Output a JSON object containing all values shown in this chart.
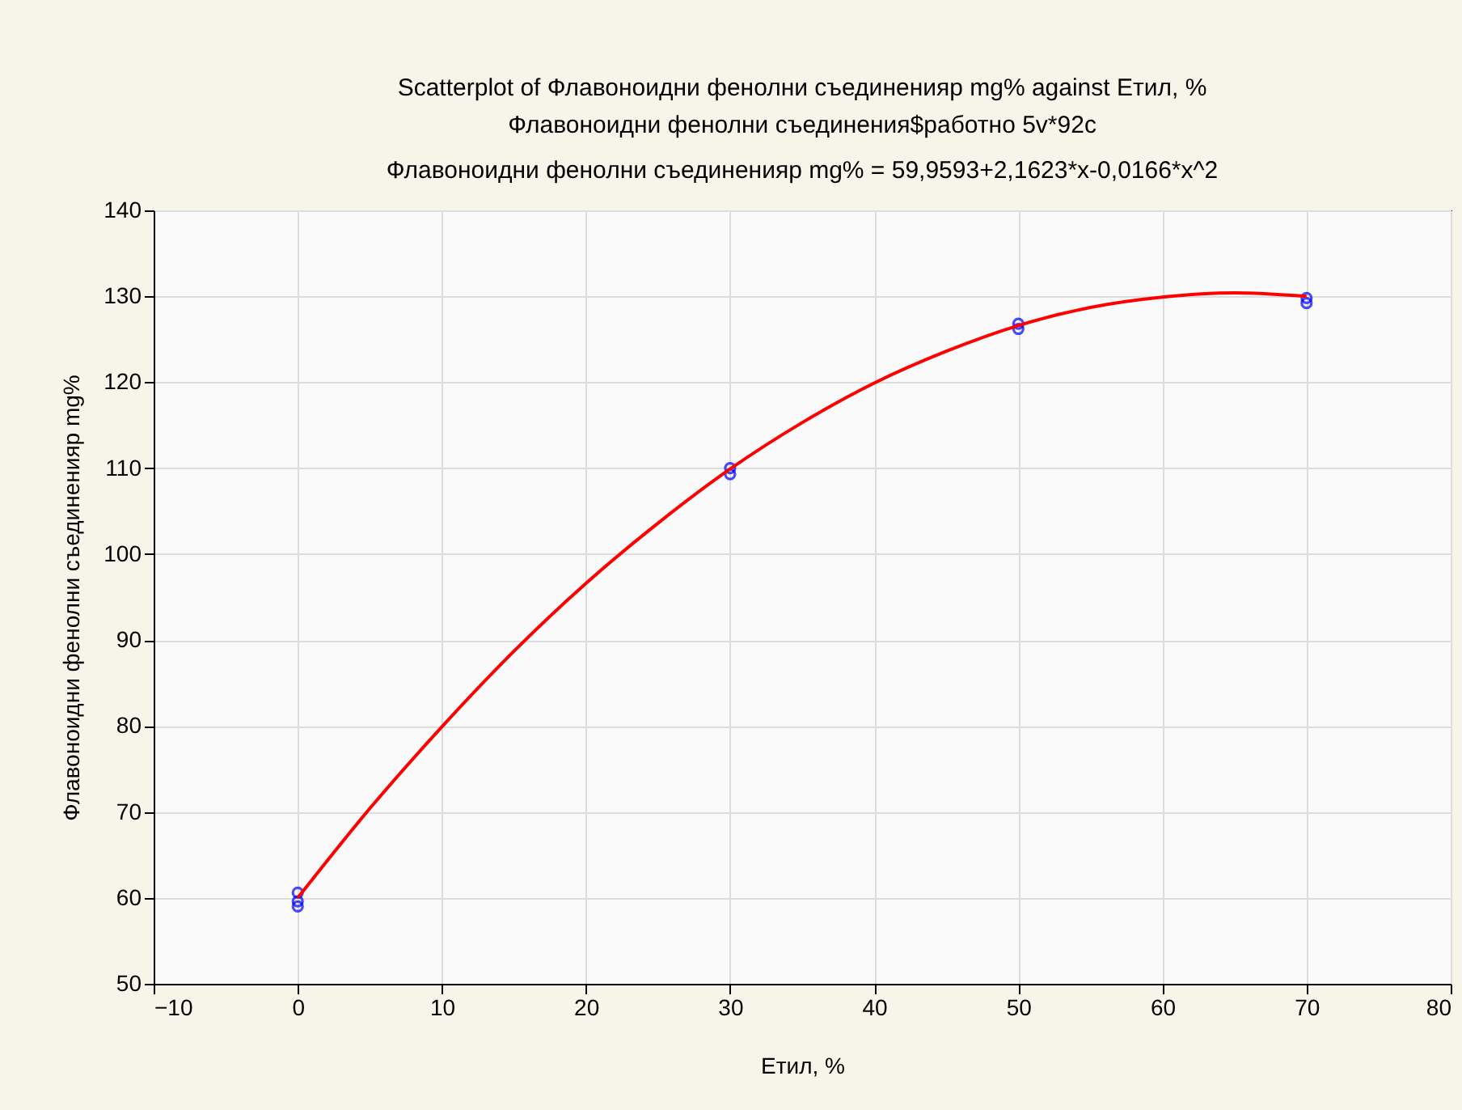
{
  "chart_data": {
    "type": "scatter",
    "title": "Scatterplot of Флавоноидни фенолни съединенияр mg% against Етил, %",
    "subtitle": "Флавоноидни фенолни съединения$работно 5v*92c\nФлавоноидни фенолни съединенияр mg% = 59,9593+2,1623*x-0,0166*x^2",
    "xlabel": "Етил, %",
    "ylabel": "Флавоноидни фенолни съединенияр mg%",
    "series": [
      {
        "color": "#0000ff",
        "marker": "circle",
        "x": [
          0,
          0,
          0,
          30,
          30,
          50,
          50,
          70,
          70
        ],
        "values": [
          59.0,
          59.6,
          60.6,
          109.3,
          110.0,
          126.2,
          126.8,
          129.2,
          129.8
        ]
      },
      {
        "type": "line",
        "color": "#ff0000",
        "marker": "none",
        "line_style": "solid",
        "x": [
          0,
          5,
          10,
          15,
          20,
          25,
          30,
          35,
          40,
          45,
          50,
          55,
          60,
          65,
          70
        ],
        "values": [
          60.0,
          70.4,
          79.9,
          88.7,
          96.6,
          103.6,
          109.9,
          115.3,
          119.9,
          123.6,
          126.6,
          128.7,
          129.9,
          130.4,
          130.0
        ]
      }
    ],
    "xlim": [
      -10,
      80
    ],
    "xticks": [
      -10,
      0,
      10,
      20,
      30,
      40,
      50,
      60,
      70,
      80
    ],
    "ylim": [
      50,
      140
    ],
    "yticks": [
      50,
      60,
      70,
      80,
      90,
      100,
      110,
      120,
      130,
      140
    ],
    "grid": true
  }
}
